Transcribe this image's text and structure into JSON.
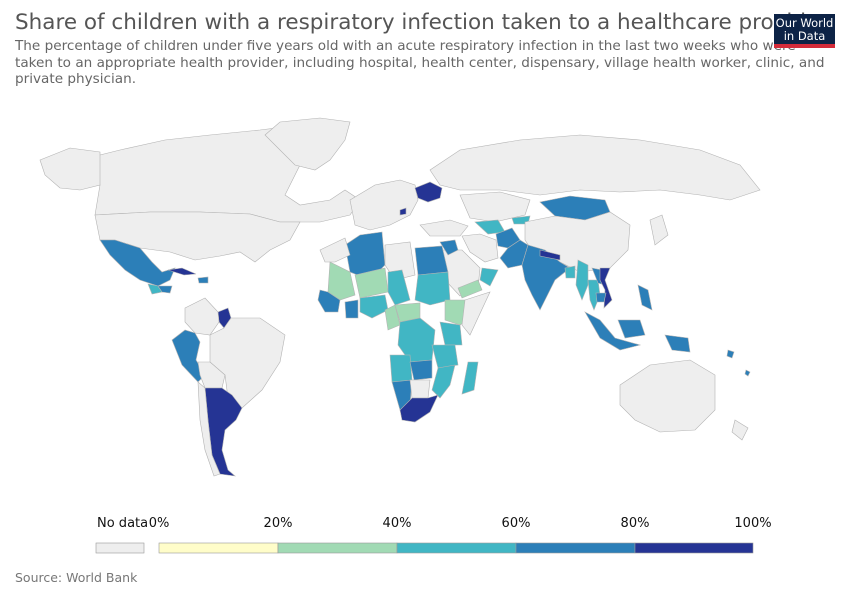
{
  "title": "Share of children with a respiratory infection taken to a healthcare provider",
  "subtitle": "The percentage of children under five years old with an acute respiratory infection in the last two weeks who were taken to an appropriate health provider, including hospital, health center, dispensary, village health worker, clinic, and private physician.",
  "logo": {
    "line1": "Our World",
    "line2": "in Data"
  },
  "source": "Source: World Bank",
  "legend": {
    "no_data_label": "No data",
    "ticks": [
      "0%",
      "20%",
      "40%",
      "60%",
      "80%",
      "100%"
    ],
    "bins": [
      {
        "range": "0-20",
        "color": "#fffdc9"
      },
      {
        "range": "20-40",
        "color": "#a1dab4"
      },
      {
        "range": "40-60",
        "color": "#41b6c4"
      },
      {
        "range": "60-80",
        "color": "#2c7fb8"
      },
      {
        "range": "80-100",
        "color": "#253494"
      }
    ],
    "no_data_color": "#eeeeee"
  },
  "colors": {
    "no_data": "#eeeeee",
    "b20_40": "#a1dab4",
    "b40_60": "#41b6c4",
    "b60_80": "#2c7fb8",
    "b80_100": "#253494"
  }
}
